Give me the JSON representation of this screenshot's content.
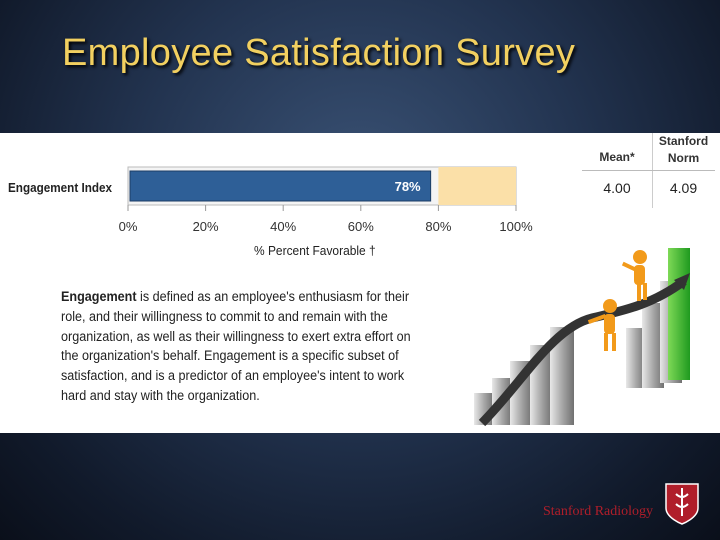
{
  "slide": {
    "title": "Employee Satisfaction Survey",
    "footer": "Stanford Radiology"
  },
  "chart_data": {
    "type": "bar",
    "orientation": "horizontal",
    "categories": [
      "Engagement Index"
    ],
    "values": [
      78
    ],
    "value_labels": [
      "78%"
    ],
    "xlabel": "% Percent Favorable †",
    "xlim": [
      0,
      100
    ],
    "xticks": [
      "0%",
      "20%",
      "40%",
      "60%",
      "80%",
      "100%"
    ],
    "highlight_band": [
      80,
      100
    ],
    "colors": {
      "bar": "#2e5f97",
      "band": "#fbe0a8",
      "bar_label": "#ffffff"
    }
  },
  "stats": {
    "mean_header": "Mean*",
    "norm_header_line1": "Stanford",
    "norm_header_line2": "Norm",
    "mean_value": "4.00",
    "norm_value": "4.09"
  },
  "definition": {
    "term": "Engagement",
    "rest": " is defined as an employee's enthusiasm for their role, and their willingness to commit to and remain with the organization, as well as their willingness to exert extra effort on the organization's behalf. Engagement is a specific subset of satisfaction, and is a predictor of an employee's intent to work hard and stay with the organization."
  }
}
